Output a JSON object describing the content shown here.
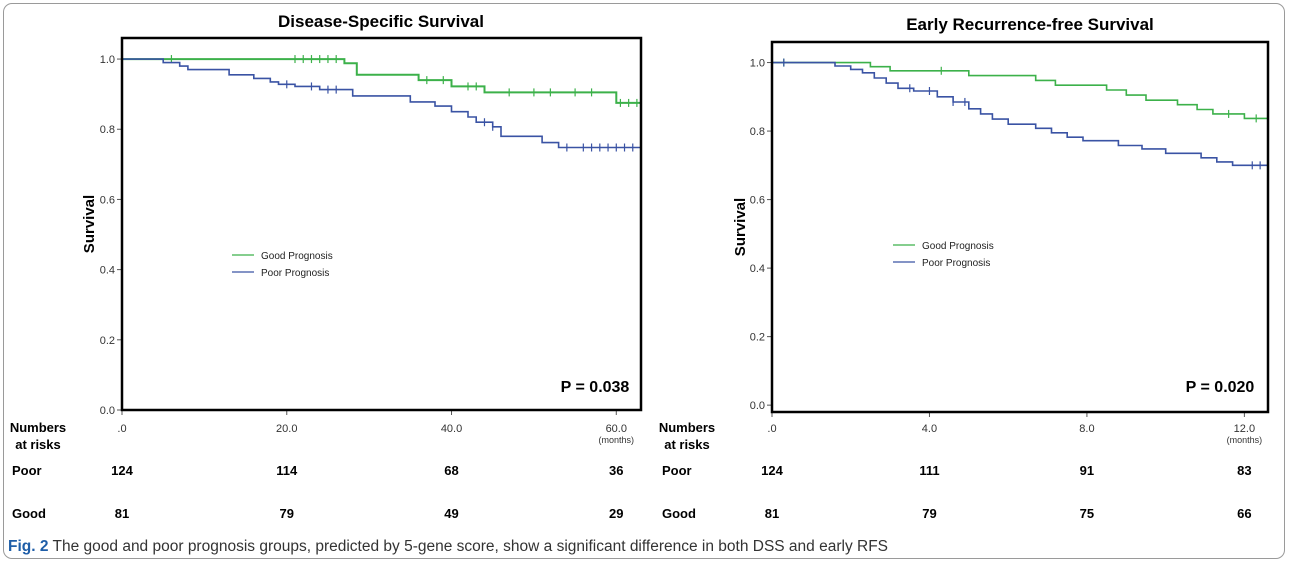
{
  "caption": {
    "label": "Fig. 2",
    "text": "The good and poor prognosis groups, predicted by 5-gene score, show a significant difference in both DSS and early RFS"
  },
  "colors": {
    "good": "#3cb14a",
    "poor": "#3a53a4"
  },
  "chart_data": [
    {
      "type": "line",
      "title": "Disease-Specific Survival",
      "ylabel": "Survival",
      "xlabel": "",
      "x_unit": "(months)",
      "xlim": [
        0,
        63
      ],
      "ylim": [
        0,
        1.06
      ],
      "x_ticks": [
        0,
        20,
        40,
        60
      ],
      "x_tick_labels": [
        ".0",
        "20.0",
        "40.0",
        "60.0"
      ],
      "y_ticks": [
        0,
        0.2,
        0.4,
        0.6,
        0.8,
        1.0
      ],
      "y_tick_labels": [
        "0.0",
        "0.2",
        "0.4",
        "0.6",
        "0.8",
        "1.0"
      ],
      "grid": false,
      "legend_position": "center-left",
      "p_value": "P = 0.038",
      "series": [
        {
          "name": "Good Prognosis",
          "color_key": "good",
          "steps": [
            [
              0,
              1.0
            ],
            [
              27,
              1.0
            ],
            [
              27,
              0.988
            ],
            [
              28.5,
              0.988
            ],
            [
              28.5,
              0.955
            ],
            [
              36,
              0.955
            ],
            [
              36,
              0.94
            ],
            [
              40,
              0.94
            ],
            [
              40,
              0.922
            ],
            [
              44,
              0.922
            ],
            [
              44,
              0.905
            ],
            [
              60,
              0.905
            ],
            [
              60,
              0.875
            ],
            [
              63,
              0.875
            ]
          ],
          "censor_x": [
            6,
            21,
            22,
            23,
            24,
            25,
            26,
            37,
            39,
            42,
            43,
            47,
            50,
            52,
            55,
            57,
            60.5,
            61.5,
            62.5
          ]
        },
        {
          "name": "Poor Prognosis",
          "color_key": "poor",
          "steps": [
            [
              0,
              1.0
            ],
            [
              5,
              1.0
            ],
            [
              5,
              0.99
            ],
            [
              7,
              0.99
            ],
            [
              7,
              0.98
            ],
            [
              8,
              0.98
            ],
            [
              8,
              0.97
            ],
            [
              13,
              0.97
            ],
            [
              13,
              0.955
            ],
            [
              16,
              0.955
            ],
            [
              16,
              0.945
            ],
            [
              18,
              0.945
            ],
            [
              18,
              0.935
            ],
            [
              19,
              0.935
            ],
            [
              19,
              0.928
            ],
            [
              21,
              0.928
            ],
            [
              21,
              0.922
            ],
            [
              24,
              0.922
            ],
            [
              24,
              0.913
            ],
            [
              28,
              0.913
            ],
            [
              28,
              0.895
            ],
            [
              35,
              0.895
            ],
            [
              35,
              0.878
            ],
            [
              38,
              0.878
            ],
            [
              38,
              0.866
            ],
            [
              40,
              0.866
            ],
            [
              40,
              0.85
            ],
            [
              42,
              0.85
            ],
            [
              42,
              0.835
            ],
            [
              43,
              0.835
            ],
            [
              43,
              0.82
            ],
            [
              45,
              0.82
            ],
            [
              45,
              0.807
            ],
            [
              46,
              0.807
            ],
            [
              46,
              0.78
            ],
            [
              51,
              0.78
            ],
            [
              51,
              0.762
            ],
            [
              53,
              0.762
            ],
            [
              53,
              0.748
            ],
            [
              63,
              0.748
            ]
          ],
          "censor_x": [
            20,
            23,
            25,
            26,
            44,
            45,
            54,
            56,
            57,
            58,
            59,
            60,
            61,
            62,
            63
          ]
        }
      ],
      "risk_table": {
        "header": [
          "Numbers",
          "at risks"
        ],
        "rows": [
          {
            "label": "Poor",
            "values": [
              "124",
              "114",
              "68",
              "36"
            ]
          },
          {
            "label": "Good",
            "values": [
              "81",
              "79",
              "49",
              "29"
            ]
          }
        ]
      }
    },
    {
      "type": "line",
      "title": "Early Recurrence-free Survival",
      "ylabel": "Survival",
      "xlabel": "",
      "x_unit": "(months)",
      "xlim": [
        0,
        12.6
      ],
      "ylim": [
        -0.02,
        1.06
      ],
      "x_ticks": [
        0,
        4,
        8,
        12
      ],
      "x_tick_labels": [
        ".0",
        "4.0",
        "8.0",
        "12.0"
      ],
      "y_ticks": [
        0,
        0.2,
        0.4,
        0.6,
        0.8,
        1.0
      ],
      "y_tick_labels": [
        "0.0",
        "0.2",
        "0.4",
        "0.6",
        "0.8",
        "1.0"
      ],
      "grid": false,
      "legend_position": "center-left",
      "p_value": "P = 0.020",
      "series": [
        {
          "name": "Good Prognosis",
          "color_key": "good",
          "steps": [
            [
              0,
              1.0
            ],
            [
              2.5,
              1.0
            ],
            [
              2.5,
              0.988
            ],
            [
              3.0,
              0.988
            ],
            [
              3.0,
              0.976
            ],
            [
              5.0,
              0.976
            ],
            [
              5.0,
              0.962
            ],
            [
              6.7,
              0.962
            ],
            [
              6.7,
              0.948
            ],
            [
              7.2,
              0.948
            ],
            [
              7.2,
              0.934
            ],
            [
              8.5,
              0.934
            ],
            [
              8.5,
              0.92
            ],
            [
              9.0,
              0.92
            ],
            [
              9.0,
              0.905
            ],
            [
              9.5,
              0.905
            ],
            [
              9.5,
              0.89
            ],
            [
              10.3,
              0.89
            ],
            [
              10.3,
              0.877
            ],
            [
              10.8,
              0.877
            ],
            [
              10.8,
              0.863
            ],
            [
              11.2,
              0.863
            ],
            [
              11.2,
              0.85
            ],
            [
              12.0,
              0.85
            ],
            [
              12.0,
              0.837
            ],
            [
              12.6,
              0.837
            ]
          ],
          "censor_x": [
            0.3,
            4.3,
            11.6,
            12.3
          ]
        },
        {
          "name": "Poor Prognosis",
          "color_key": "poor",
          "steps": [
            [
              0,
              1.0
            ],
            [
              1.6,
              1.0
            ],
            [
              1.6,
              0.99
            ],
            [
              2.0,
              0.99
            ],
            [
              2.0,
              0.98
            ],
            [
              2.3,
              0.98
            ],
            [
              2.3,
              0.97
            ],
            [
              2.6,
              0.97
            ],
            [
              2.6,
              0.955
            ],
            [
              2.9,
              0.955
            ],
            [
              2.9,
              0.94
            ],
            [
              3.2,
              0.94
            ],
            [
              3.2,
              0.925
            ],
            [
              3.6,
              0.925
            ],
            [
              3.6,
              0.917
            ],
            [
              4.2,
              0.917
            ],
            [
              4.2,
              0.9
            ],
            [
              4.6,
              0.9
            ],
            [
              4.6,
              0.885
            ],
            [
              5.0,
              0.885
            ],
            [
              5.0,
              0.865
            ],
            [
              5.3,
              0.865
            ],
            [
              5.3,
              0.85
            ],
            [
              5.6,
              0.85
            ],
            [
              5.6,
              0.835
            ],
            [
              6.0,
              0.835
            ],
            [
              6.0,
              0.82
            ],
            [
              6.7,
              0.82
            ],
            [
              6.7,
              0.808
            ],
            [
              7.1,
              0.808
            ],
            [
              7.1,
              0.795
            ],
            [
              7.5,
              0.795
            ],
            [
              7.5,
              0.782
            ],
            [
              7.9,
              0.782
            ],
            [
              7.9,
              0.772
            ],
            [
              8.8,
              0.772
            ],
            [
              8.8,
              0.758
            ],
            [
              9.4,
              0.758
            ],
            [
              9.4,
              0.748
            ],
            [
              10.0,
              0.748
            ],
            [
              10.0,
              0.735
            ],
            [
              10.9,
              0.735
            ],
            [
              10.9,
              0.722
            ],
            [
              11.3,
              0.722
            ],
            [
              11.3,
              0.71
            ],
            [
              11.7,
              0.71
            ],
            [
              11.7,
              0.7
            ],
            [
              12.6,
              0.7
            ]
          ],
          "censor_x": [
            0.3,
            3.5,
            4.0,
            4.6,
            4.9,
            12.2,
            12.4
          ]
        }
      ],
      "risk_table": {
        "header": [
          "Numbers",
          "at risks"
        ],
        "rows": [
          {
            "label": "Poor",
            "values": [
              "124",
              "111",
              "91",
              "83"
            ]
          },
          {
            "label": "Good",
            "values": [
              "81",
              "79",
              "75",
              "66"
            ]
          }
        ]
      }
    }
  ]
}
